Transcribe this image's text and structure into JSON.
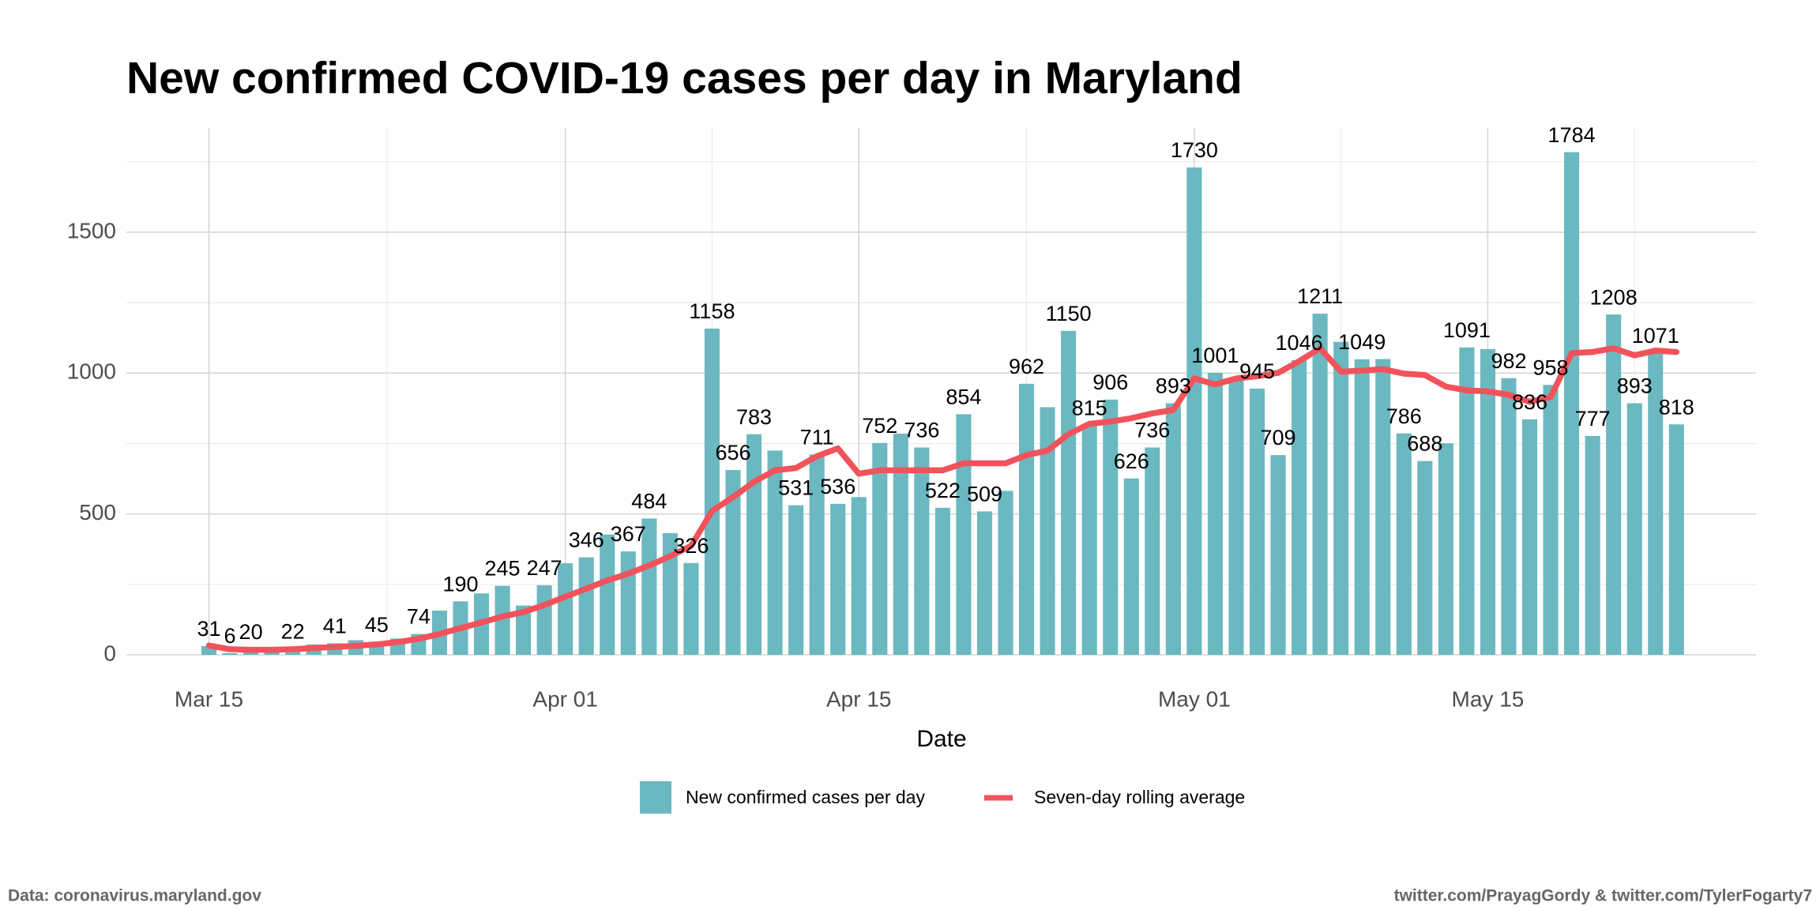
{
  "chart_data": {
    "type": "bar",
    "title": "New confirmed COVID-19 cases per day in Maryland",
    "xlabel": "Date",
    "source": "Data: coronavirus.maryland.gov",
    "credit": "twitter.com/PrayagGordy & twitter.com/TylerFogarty7",
    "categories": [
      "Mar 15",
      null,
      null,
      null,
      null,
      null,
      null,
      null,
      null,
      null,
      null,
      null,
      null,
      null,
      null,
      null,
      null,
      "Apr 01",
      null,
      null,
      null,
      null,
      null,
      null,
      null,
      null,
      null,
      null,
      null,
      null,
      null,
      "Apr 15",
      null,
      null,
      null,
      null,
      null,
      null,
      null,
      null,
      null,
      null,
      null,
      null,
      null,
      null,
      null,
      "May 01",
      null,
      null,
      null,
      null,
      null,
      null,
      null,
      null,
      null,
      null,
      null,
      null,
      null,
      "May 15",
      null,
      null,
      null,
      null,
      null,
      null,
      null,
      null,
      null
    ],
    "series": [
      {
        "name": "New confirmed cases per day",
        "type": "bar",
        "color": "#6bb8c1",
        "values": [
          31,
          6,
          20,
          15,
          22,
          37,
          41,
          52,
          45,
          58,
          74,
          157,
          190,
          218,
          245,
          175,
          247,
          325,
          346,
          427,
          367,
          484,
          432,
          326,
          1158,
          656,
          783,
          725,
          531,
          711,
          536,
          560,
          752,
          785,
          736,
          522,
          854,
          509,
          582,
          962,
          879,
          1150,
          815,
          906,
          626,
          736,
          893,
          1730,
          1001,
          975,
          945,
          709,
          1046,
          1211,
          1111,
          1049,
          1050,
          786,
          688,
          751,
          1091,
          1085,
          982,
          836,
          958,
          1784,
          777,
          1208,
          893,
          1071,
          818
        ]
      },
      {
        "name": "Seven-day rolling average",
        "type": "line",
        "color": "#f2525b",
        "values": [
          33,
          20,
          18,
          18,
          20,
          24,
          28,
          32,
          37,
          45,
          57,
          74,
          95,
          115,
          136,
          152,
          177,
          206,
          235,
          264,
          288,
          317,
          350,
          387,
          511,
          560,
          614,
          655,
          663,
          705,
          733,
          643,
          655,
          655,
          655,
          655,
          680,
          680,
          680,
          709,
          725,
          783,
          820,
          828,
          840,
          857,
          869,
          981,
          960,
          981,
          989,
          1001,
          1042,
          1088,
          1005,
          1009,
          1014,
          998,
          993,
          952,
          939,
          935,
          923,
          898,
          915,
          1071,
          1075,
          1088,
          1063,
          1080,
          1075
        ]
      }
    ],
    "ylim": [
      0,
      1870
    ],
    "yticks": [
      0,
      500,
      1000,
      1500
    ],
    "grid": true,
    "legend": "bottom"
  }
}
